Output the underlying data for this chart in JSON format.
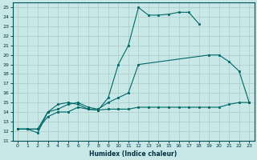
{
  "background_color": "#c8e8e8",
  "grid_color": "#b0d0d0",
  "line_color": "#006868",
  "xlabel": "Humidex (Indice chaleur)",
  "ylim": [
    11,
    25.5
  ],
  "xlim": [
    -0.5,
    23.5
  ],
  "yticks": [
    11,
    12,
    13,
    14,
    15,
    16,
    17,
    18,
    19,
    20,
    21,
    22,
    23,
    24,
    25
  ],
  "xticks": [
    0,
    1,
    2,
    3,
    4,
    5,
    6,
    7,
    8,
    9,
    10,
    11,
    12,
    13,
    14,
    15,
    16,
    17,
    18,
    19,
    20,
    21,
    22,
    23
  ],
  "line1_x": [
    0,
    1,
    2,
    3,
    4,
    5,
    6,
    7,
    8,
    9,
    10,
    11,
    12,
    13,
    14,
    15,
    16,
    17,
    18
  ],
  "line1_y": [
    12.2,
    12.2,
    12.2,
    14.0,
    14.8,
    15.0,
    14.8,
    14.3,
    14.2,
    15.5,
    19.0,
    21.0,
    25.0,
    24.2,
    24.2,
    24.3,
    24.5,
    24.5,
    23.3
  ],
  "line2_x": [
    0,
    1,
    2,
    3,
    4,
    5,
    6,
    7,
    8,
    9,
    10,
    11,
    12,
    19,
    20,
    21,
    22,
    23
  ],
  "line2_y": [
    12.2,
    12.2,
    11.8,
    14.0,
    14.3,
    14.8,
    15.0,
    14.5,
    14.3,
    15.0,
    15.5,
    16.0,
    19.0,
    20.0,
    20.0,
    19.3,
    18.3,
    15.0
  ],
  "line2_gap_start": 12,
  "line2_gap_end": 13,
  "line3_x": [
    0,
    1,
    2,
    3,
    4,
    5,
    6,
    7,
    8,
    9,
    10,
    11,
    12,
    13,
    14,
    15,
    16,
    17,
    18,
    19,
    20,
    21,
    22,
    23
  ],
  "line3_y": [
    12.2,
    12.2,
    12.2,
    13.5,
    14.0,
    14.0,
    14.5,
    14.3,
    14.2,
    14.3,
    14.3,
    14.3,
    14.5,
    14.5,
    14.5,
    14.5,
    14.5,
    14.5,
    14.5,
    14.5,
    14.5,
    14.8,
    15.0,
    15.0
  ]
}
